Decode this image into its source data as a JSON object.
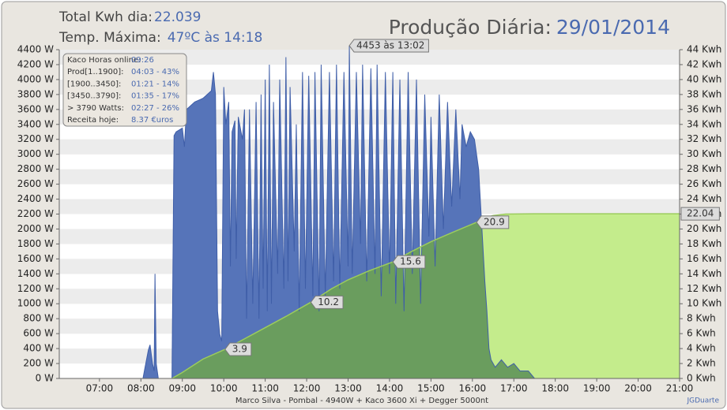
{
  "header": {
    "total_label": "Total Kwh dia:",
    "total_value": "22.039",
    "temp_label": "Temp. Máxima:",
    "temp_value": "47ºC às 14:18",
    "title_label": "Produção Diária:",
    "title_date": "29/01/2014"
  },
  "info_box": {
    "rows": [
      [
        "Kaco Horas online:",
        "09:26"
      ],
      [
        "Prod[1..1900]:",
        "04:03 - 43%"
      ],
      [
        "[1900..3450]:",
        "01:21 - 14%"
      ],
      [
        "[3450..3790]:",
        "01:35 - 17%"
      ],
      [
        "> 3790 Watts:",
        "02:27 - 26%"
      ],
      [
        "Receita hoje:",
        "8.37 €uros"
      ]
    ]
  },
  "footer": {
    "text": "Marco Silva - Pombal - 4940W + Kaco 3600 Xi + Degger 5000nt",
    "credit": "JGDuarte"
  },
  "chart_data": {
    "type": "area",
    "xlim": [
      6.03,
      21
    ],
    "xticks": [
      {
        "value": 7,
        "label": "07:00"
      },
      {
        "value": 8,
        "label": "08:00"
      },
      {
        "value": 9,
        "label": "09:00"
      },
      {
        "value": 10,
        "label": "10:00"
      },
      {
        "value": 11,
        "label": "11:00"
      },
      {
        "value": 12,
        "label": "12:00"
      },
      {
        "value": 13,
        "label": "13:00"
      },
      {
        "value": 14,
        "label": "14:00"
      },
      {
        "value": 15,
        "label": "15:00"
      },
      {
        "value": 16,
        "label": "16:00"
      },
      {
        "value": 17,
        "label": "17:00"
      },
      {
        "value": 18,
        "label": "18:00"
      },
      {
        "value": 19,
        "label": "19:00"
      },
      {
        "value": 20,
        "label": "20:00"
      },
      {
        "value": 21,
        "label": "21:00"
      }
    ],
    "ylim": [
      0,
      4400
    ],
    "yticks": [
      {
        "value": 0,
        "label": "0 W"
      },
      {
        "value": 200,
        "label": "200 W"
      },
      {
        "value": 400,
        "label": "400 W"
      },
      {
        "value": 600,
        "label": "600 W"
      },
      {
        "value": 800,
        "label": "800 W"
      },
      {
        "value": 1000,
        "label": "1000 W"
      },
      {
        "value": 1200,
        "label": "1200 W"
      },
      {
        "value": 1400,
        "label": "1400 W"
      },
      {
        "value": 1600,
        "label": "1600 W"
      },
      {
        "value": 1800,
        "label": "1800 W"
      },
      {
        "value": 2000,
        "label": "2000 W"
      },
      {
        "value": 2200,
        "label": "2200 W"
      },
      {
        "value": 2400,
        "label": "2400 W"
      },
      {
        "value": 2600,
        "label": "2600 W"
      },
      {
        "value": 2800,
        "label": "2800 W"
      },
      {
        "value": 3000,
        "label": "3000 W"
      },
      {
        "value": 3200,
        "label": "3200 W"
      },
      {
        "value": 3400,
        "label": "3400 W"
      },
      {
        "value": 3600,
        "label": "3600 W"
      },
      {
        "value": 3800,
        "label": "3800 W"
      },
      {
        "value": 4000,
        "label": "4000 W"
      },
      {
        "value": 4200,
        "label": "4200 W"
      },
      {
        "value": 4400,
        "label": "4400 W"
      }
    ],
    "y2lim": [
      0,
      44
    ],
    "y2ticks": [
      {
        "value": 0,
        "label": "0 Kwh"
      },
      {
        "value": 2,
        "label": "2 Kwh"
      },
      {
        "value": 4,
        "label": "4 Kwh"
      },
      {
        "value": 6,
        "label": "6 Kwh"
      },
      {
        "value": 8,
        "label": "8 Kwh"
      },
      {
        "value": 10,
        "label": "10 Kwh"
      },
      {
        "value": 12,
        "label": "12 Kwh"
      },
      {
        "value": 14,
        "label": "14 Kwh"
      },
      {
        "value": 16,
        "label": "16 Kwh"
      },
      {
        "value": 18,
        "label": "18 Kwh"
      },
      {
        "value": 20,
        "label": "20 Kwh"
      },
      {
        "value": 22,
        "label": "22 Kwh"
      },
      {
        "value": 24,
        "label": "24 Kwh"
      },
      {
        "value": 26,
        "label": "26 Kwh"
      },
      {
        "value": 28,
        "label": "28 Kwh"
      },
      {
        "value": 30,
        "label": "30 Kwh"
      },
      {
        "value": 32,
        "label": "32 Kwh"
      },
      {
        "value": 34,
        "label": "34 Kwh"
      },
      {
        "value": 36,
        "label": "36 Kwh"
      },
      {
        "value": 38,
        "label": "38 Kwh"
      },
      {
        "value": 40,
        "label": "40 Kwh"
      },
      {
        "value": 42,
        "label": "42 Kwh"
      },
      {
        "value": 44,
        "label": "44 Kwh"
      }
    ],
    "stripes": true,
    "max_label": "4453 às 13:02",
    "series": [
      {
        "color": "#5674b9",
        "x": [
          7.8,
          8.05,
          8.1,
          8.18,
          8.22,
          8.28,
          8.32,
          8.34,
          8.37,
          8.42,
          8.75,
          8.8,
          8.85,
          9.0,
          9.05,
          9.1,
          9.3,
          9.5,
          9.7,
          9.75,
          9.8,
          9.85,
          9.9,
          9.95,
          10.0,
          10.05,
          10.12,
          10.16,
          10.2,
          10.27,
          10.3,
          10.35,
          10.45,
          10.5,
          10.55,
          10.62,
          10.7,
          10.78,
          10.85,
          10.9,
          10.95,
          11.0,
          11.05,
          11.1,
          11.15,
          11.2,
          11.3,
          11.35,
          11.45,
          11.5,
          11.55,
          11.6,
          11.7,
          11.75,
          11.82,
          11.9,
          11.97,
          12.05,
          12.15,
          12.2,
          12.3,
          12.35,
          12.45,
          12.55,
          12.65,
          12.72,
          12.8,
          12.9,
          13.0,
          13.03,
          13.1,
          13.2,
          13.3,
          13.35,
          13.45,
          13.55,
          13.65,
          13.7,
          13.8,
          13.9,
          14.0,
          14.08,
          14.15,
          14.25,
          14.35,
          14.45,
          14.55,
          14.65,
          14.75,
          14.85,
          14.95,
          15.0,
          15.1,
          15.2,
          15.3,
          15.4,
          15.5,
          15.6,
          15.7,
          15.75,
          15.85,
          15.95,
          16.05,
          16.1,
          16.15,
          16.2,
          16.25,
          16.3,
          16.35,
          16.4,
          16.45,
          16.55,
          16.7,
          16.85,
          17.0,
          17.15,
          17.35,
          17.5,
          21.0
        ],
        "values": [
          0,
          0,
          150,
          380,
          450,
          200,
          100,
          1400,
          200,
          0,
          0,
          3250,
          3300,
          3350,
          3100,
          3600,
          3700,
          3750,
          3850,
          4100,
          3800,
          900,
          600,
          500,
          3900,
          3400,
          3700,
          1500,
          3300,
          3450,
          1600,
          3500,
          3200,
          3600,
          800,
          3600,
          1000,
          3700,
          800,
          3800,
          1200,
          4000,
          900,
          4200,
          1000,
          3700,
          1400,
          4000,
          1200,
          4300,
          1300,
          3900,
          1700,
          3400,
          900,
          4100,
          1200,
          4050,
          1100,
          4100,
          900,
          4200,
          1100,
          4100,
          1300,
          4200,
          1200,
          4100,
          1500,
          4453,
          1400,
          4100,
          1800,
          4200,
          1300,
          4150,
          1400,
          4200,
          1100,
          4100,
          1400,
          4100,
          1000,
          4000,
          900,
          4100,
          1400,
          4000,
          1000,
          3800,
          1900,
          3500,
          1500,
          3800,
          2000,
          3700,
          2300,
          3600,
          2400,
          3400,
          3100,
          3300,
          3200,
          3000,
          2800,
          2300,
          1800,
          1300,
          900,
          400,
          250,
          150,
          250,
          150,
          200,
          100,
          100,
          0,
          0
        ]
      },
      {
        "color": "#c4ec8c",
        "axis": "y2",
        "x": [
          8.75,
          9.0,
          9.5,
          10.03,
          10.5,
          11.0,
          11.5,
          12.1,
          12.6,
          13.0,
          13.5,
          14.08,
          14.5,
          15.0,
          15.5,
          16.1,
          16.3,
          16.5,
          16.8,
          17.5,
          21.0
        ],
        "values": [
          0,
          0.8,
          2.6,
          3.9,
          5.3,
          6.8,
          8.3,
          10.2,
          12.0,
          13.2,
          14.4,
          15.6,
          16.9,
          18.3,
          19.5,
          20.9,
          21.5,
          21.8,
          22.0,
          22.04,
          22.04
        ],
        "point_labels": {
          "x": [
            10.03,
            12.1,
            14.08,
            16.1,
            21.0
          ],
          "values": [
            3.9,
            10.2,
            15.6,
            20.9,
            22.04
          ]
        }
      }
    ]
  }
}
